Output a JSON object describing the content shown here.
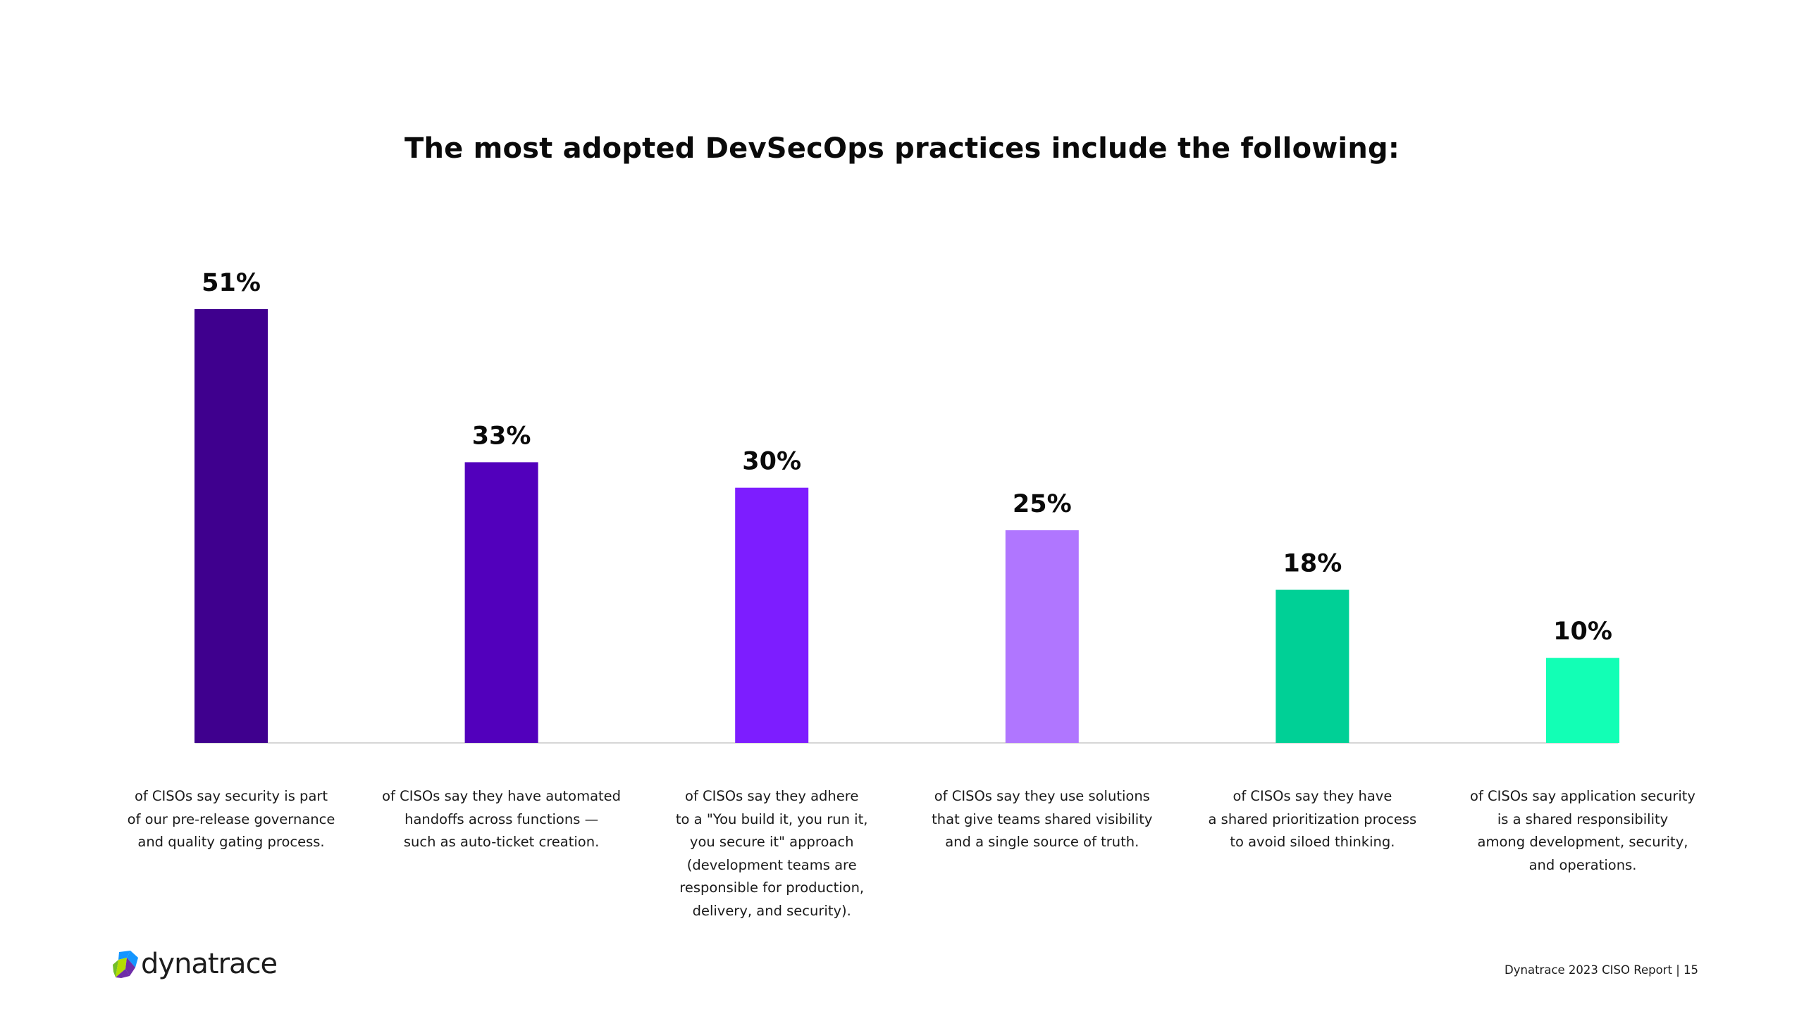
{
  "chart_data": {
    "type": "bar",
    "title": "The most adopted DevSecOps practices include the following:",
    "xlabel": "",
    "ylabel": "",
    "ylim": [
      0,
      51
    ],
    "grid": false,
    "value_labels": [
      "51%",
      "33%",
      "30%",
      "25%",
      "18%",
      "10%"
    ],
    "values": [
      51,
      33,
      30,
      25,
      18,
      10
    ],
    "colors": [
      "#3f008e",
      "#5200bc",
      "#7d1dff",
      "#b076ff",
      "#00d096",
      "#12ffb5"
    ],
    "categories": [
      [
        "of CISOs say security is part",
        "of our pre-release governance",
        "and quality gating process."
      ],
      [
        "of CISOs say they have automated",
        "handoffs across functions —",
        "such as auto-ticket creation."
      ],
      [
        "of CISOs say they adhere",
        "to a \"You build it, you run it,",
        "you secure it\" approach",
        "(development teams are",
        "responsible for production,",
        "delivery, and security)."
      ],
      [
        "of CISOs say they use solutions",
        "that give teams shared visibility",
        "and a single source of truth."
      ],
      [
        "of CISOs say they have",
        "a shared prioritization process",
        "to avoid siloed thinking."
      ],
      [
        "of CISOs say application security",
        "is a shared responsibility",
        "among development, security,",
        "and operations."
      ]
    ]
  },
  "brand": {
    "logo_text": "dynatrace",
    "logo_colors": [
      "#b4dc00",
      "#1496ff",
      "#6f2da8",
      "#73be28"
    ]
  },
  "footer": {
    "text": "Dynatrace 2023 CISO Report | 15"
  }
}
